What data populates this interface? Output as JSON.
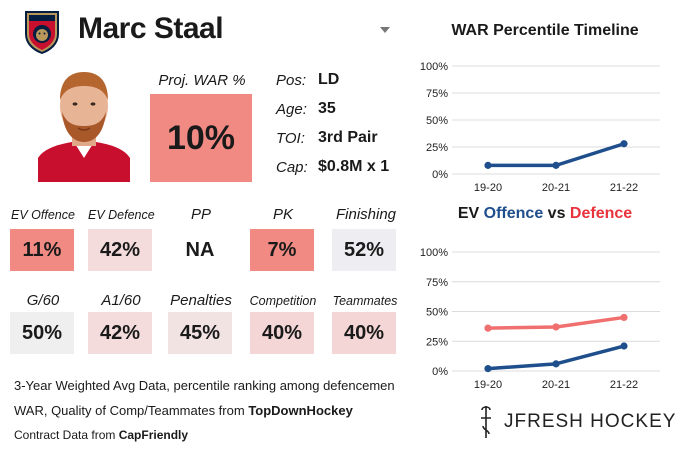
{
  "player": {
    "name": "Marc Staal",
    "proj_war_label": "Proj. WAR %",
    "proj_war_value": "10%",
    "proj_war_color": "#f28a84"
  },
  "info": [
    {
      "label": "Pos:",
      "value": "LD"
    },
    {
      "label": "Age:",
      "value": "35"
    },
    {
      "label": "TOI:",
      "value": "3rd Pair"
    },
    {
      "label": "Cap:",
      "value": "$0.8M x 1"
    }
  ],
  "stats_row1": [
    {
      "label": "EV Offence",
      "value": "11%",
      "color": "#f28a84"
    },
    {
      "label": "EV Defence",
      "value": "42%",
      "color": "#f5dcdc"
    },
    {
      "label": "PP",
      "value": "NA",
      "color": "#ffffff"
    },
    {
      "label": "PK",
      "value": "7%",
      "color": "#f28a84"
    },
    {
      "label": "Finishing",
      "value": "52%",
      "color": "#eeeef2"
    }
  ],
  "stats_row2": [
    {
      "label": "G/60",
      "value": "50%",
      "color": "#efefef"
    },
    {
      "label": "A1/60",
      "value": "42%",
      "color": "#f5dcdc"
    },
    {
      "label": "Penalties",
      "value": "45%",
      "color": "#f2e3e3"
    },
    {
      "label": "Competition",
      "value": "40%",
      "color": "#f4d6d6"
    },
    {
      "label": "Teammates",
      "value": "40%",
      "color": "#f4d6d6"
    }
  ],
  "footnotes": {
    "line1": "3-Year Weighted Avg Data, percentile ranking among defencemen",
    "line2_prefix": "WAR, Quality of Comp/Teammates from ",
    "line2_source": "TopDownHockey",
    "line3_prefix": "Contract Data from ",
    "line3_source": "CapFriendly"
  },
  "brand": "JFRESH HOCKEY",
  "colors": {
    "offence": "#1f4e8c",
    "defence": "#f07070"
  },
  "chart_data": [
    {
      "type": "line",
      "title": "WAR Percentile Timeline",
      "categories": [
        "19-20",
        "20-21",
        "21-22"
      ],
      "series": [
        {
          "values": [
            8,
            8,
            28
          ],
          "color": "#1f4e8c"
        }
      ],
      "yticks": [
        "0%",
        "25%",
        "50%",
        "75%",
        "100%"
      ],
      "ylim": [
        0,
        100
      ],
      "grid": "horizontal"
    },
    {
      "type": "line",
      "title_parts": [
        "EV ",
        "Offence",
        " vs ",
        "Defence"
      ],
      "categories": [
        "19-20",
        "20-21",
        "21-22"
      ],
      "series": [
        {
          "name": "Offence",
          "values": [
            2,
            6,
            21
          ],
          "color": "#1f4e8c"
        },
        {
          "name": "Defence",
          "values": [
            36,
            37,
            45
          ],
          "color": "#f07070"
        }
      ],
      "yticks": [
        "0%",
        "25%",
        "50%",
        "75%",
        "100%"
      ],
      "ylim": [
        0,
        100
      ],
      "grid": "horizontal"
    }
  ]
}
